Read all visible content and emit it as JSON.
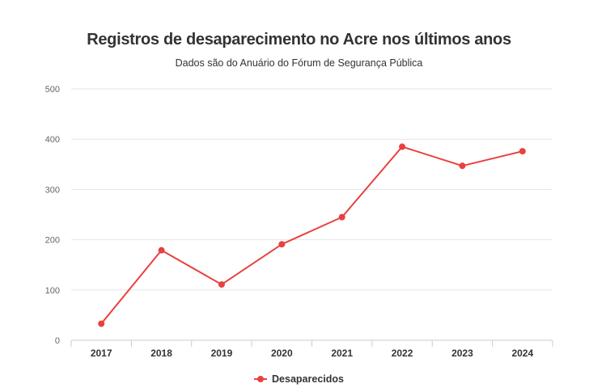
{
  "chart_data": {
    "type": "line",
    "title": "Registros de desaparecimento no Acre nos últimos anos",
    "subtitle": "Dados são do Anuário do Fórum de Segurança Pública",
    "categories": [
      "2017",
      "2018",
      "2019",
      "2020",
      "2021",
      "2022",
      "2023",
      "2024"
    ],
    "series": [
      {
        "name": "Desaparecidos",
        "color": "#e8413f",
        "values": [
          33,
          179,
          111,
          191,
          245,
          385,
          347,
          376
        ]
      }
    ],
    "ylim": [
      0,
      500
    ],
    "yticks": [
      0,
      100,
      200,
      300,
      400,
      500
    ],
    "xlabel": "",
    "ylabel": "",
    "grid": true,
    "legend": "bottom-center"
  }
}
